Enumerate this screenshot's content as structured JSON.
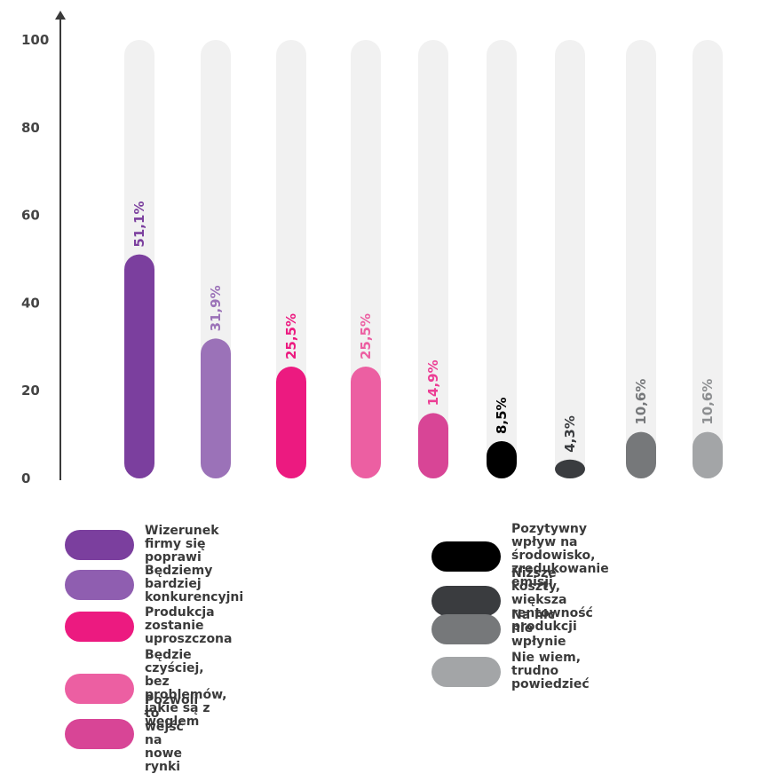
{
  "chart_data": {
    "type": "bar",
    "ylim": [
      0,
      100
    ],
    "yticks": [
      "0",
      "20",
      "40",
      "60",
      "80",
      "100"
    ],
    "value_labels": [
      "51,1%",
      "31,9%",
      "25,5%",
      "25,5%",
      "14,9%",
      "8,5%",
      "4,3%",
      "10,6%",
      "10,6%"
    ],
    "values": [
      51.1,
      31.9,
      25.5,
      25.5,
      14.9,
      8.5,
      4.3,
      10.6,
      10.6
    ],
    "categories": [
      "Wizerunek firmy się poprawi",
      "Będziemy bardziej konkurencyjni",
      "Produkcja zostanie uproszczona",
      "Będzie czyściej, bez problemów,\njakie są z węglem",
      "Pozwoli to wejść na nowe rynki",
      "Pozytywny wpływ na środowisko,\nzredukowanie emisji",
      "Niższe koszty, większa\nrentowność produkcji",
      "Na nic nie wpłynie",
      "Nie wiem, trudno powiedzieć"
    ],
    "colors": [
      "#7b3f9e",
      "#9b72b8",
      "#ec1a80",
      "#ec5fa2",
      "#d84596",
      "#000000",
      "#3a3c3f",
      "#76787a",
      "#a3a5a7"
    ],
    "label_colors": [
      "#7b3f9e",
      "#9b72b8",
      "#ec1a80",
      "#ec5fa2",
      "#ec3f95",
      "#000000",
      "#3a3c3f",
      "#76787a",
      "#8d8f91"
    ],
    "legend_colors": [
      "#7b3f9e",
      "#8f5eb0",
      "#ec1a80",
      "#ec5fa2",
      "#d84596",
      "#000000",
      "#3a3c3f",
      "#76787a",
      "#a3a5a7"
    ],
    "track_color": "#f1f1f1",
    "axis_color": "#3a3a3a",
    "grid": false,
    "legend_position": "bottom"
  }
}
